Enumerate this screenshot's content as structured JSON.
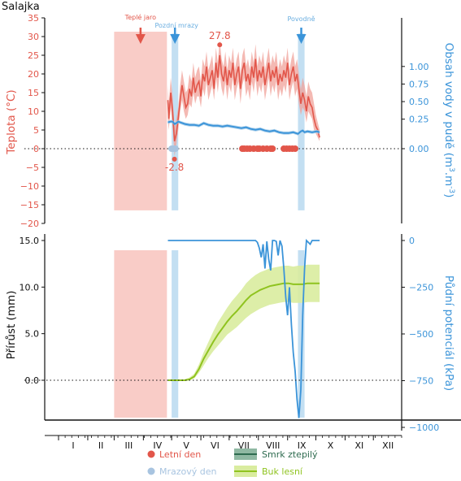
{
  "chart_data": [
    {
      "type": "line",
      "title": "Salajka",
      "ylabel_left": "Teplota (°C)",
      "ylabel_right": "Obsah vody v pudě (m³.m⁻³)",
      "ylabel_right_parts": {
        "pre": "Obsah vody v pudě (m",
        "sup1": "3",
        "mid": ".m",
        "sup2": "-3",
        "post": ")"
      },
      "ylim_left": [
        -20,
        35
      ],
      "ticks_left": [
        35,
        30,
        25,
        20,
        15,
        10,
        5,
        0,
        -5,
        -10,
        -15,
        -20
      ],
      "ticks_right": [
        {
          "label": "1.00",
          "at_temp": 22
        },
        {
          "label": "0.75",
          "at_temp": 17.3
        },
        {
          "label": "0.50",
          "at_temp": 12.6
        },
        {
          "label": "0.25",
          "at_temp": 7.9
        },
        {
          "label": "0.00",
          "at_temp": 0
        }
      ],
      "reference_line": 0,
      "x_domain_doy": [
        1,
        365
      ],
      "shaded_periods": [
        {
          "name": "Teplé jaro",
          "start_doy": 60,
          "end_doy": 116,
          "color": "#f8c3bd"
        },
        {
          "name": "Pozdní mrazy",
          "start_doy": 121,
          "end_doy": 128,
          "color": "#b9d9f0"
        },
        {
          "name": "Povodně",
          "start_doy": 255,
          "end_doy": 262,
          "color": "#b9d9f0"
        }
      ],
      "event_arrows": [
        {
          "label": "Teplé jaro",
          "doy": 88,
          "color": "#e2564a"
        },
        {
          "label": "Pozdní mrazy",
          "doy": 124.5,
          "color": "#3b94d9"
        },
        {
          "label": "Povodně",
          "doy": 258.5,
          "color": "#3b94d9"
        }
      ],
      "annotations": [
        {
          "text": "27.8",
          "doy": 172,
          "value": 27.8,
          "color": "#e2564a"
        },
        {
          "text": "-2.8",
          "doy": 124,
          "value": -2.8,
          "color": "#e2564a"
        }
      ],
      "series": [
        {
          "name": "Teplota",
          "color": "#e2564a",
          "band_color": "#f0a29a",
          "doy": [
            117,
            118,
            120,
            122,
            124,
            126,
            128,
            130,
            132,
            134,
            136,
            138,
            140,
            142,
            144,
            146,
            148,
            150,
            152,
            154,
            156,
            158,
            160,
            162,
            164,
            166,
            168,
            170,
            172,
            174,
            176,
            178,
            180,
            182,
            184,
            186,
            188,
            190,
            192,
            194,
            196,
            198,
            200,
            202,
            204,
            206,
            208,
            210,
            212,
            214,
            216,
            218,
            220,
            222,
            224,
            226,
            228,
            230,
            232,
            234,
            236,
            238,
            240,
            242,
            244,
            246,
            248,
            250,
            252,
            254,
            256,
            258,
            260,
            262,
            264,
            266,
            268,
            270,
            272,
            274,
            276,
            278
          ],
          "mean": [
            13,
            8,
            15,
            10,
            2,
            4,
            8,
            13,
            17,
            14,
            11,
            12,
            16,
            14,
            19,
            15,
            17,
            18,
            14,
            20,
            18,
            22,
            17,
            19,
            21,
            16,
            23,
            19,
            25,
            20,
            18,
            22,
            17,
            21,
            19,
            23,
            17,
            20,
            22,
            16,
            21,
            23,
            18,
            20,
            17,
            22,
            19,
            24,
            18,
            21,
            19,
            22,
            17,
            20,
            23,
            18,
            21,
            19,
            22,
            17,
            20,
            18,
            21,
            19,
            23,
            17,
            20,
            22,
            18,
            20,
            16,
            12,
            15,
            13,
            10,
            14,
            12,
            11,
            8,
            6,
            5,
            3
          ],
          "lower": [
            8,
            5,
            11,
            6,
            -2,
            1,
            5,
            10,
            13,
            10,
            8,
            9,
            12,
            11,
            15,
            12,
            14,
            14,
            11,
            16,
            14,
            18,
            13,
            15,
            17,
            13,
            19,
            15,
            20,
            16,
            14,
            18,
            13,
            17,
            15,
            19,
            13,
            16,
            18,
            12,
            17,
            19,
            14,
            16,
            13,
            18,
            15,
            19,
            14,
            17,
            15,
            18,
            13,
            16,
            19,
            14,
            17,
            15,
            18,
            13,
            16,
            14,
            17,
            15,
            19,
            13,
            16,
            18,
            14,
            16,
            12,
            9,
            11,
            10,
            7,
            10,
            9,
            8,
            5,
            4,
            3,
            2
          ],
          "upper": [
            17,
            12,
            19,
            14,
            6,
            8,
            11,
            17,
            21,
            18,
            15,
            16,
            20,
            18,
            23,
            19,
            21,
            22,
            18,
            24,
            22,
            26,
            21,
            23,
            25,
            20,
            27,
            23,
            29,
            24,
            22,
            26,
            21,
            25,
            23,
            27,
            21,
            24,
            26,
            20,
            25,
            27,
            22,
            24,
            21,
            26,
            23,
            28,
            22,
            25,
            23,
            26,
            21,
            24,
            27,
            22,
            25,
            23,
            26,
            21,
            24,
            22,
            25,
            23,
            27,
            21,
            24,
            26,
            22,
            24,
            20,
            16,
            19,
            17,
            14,
            18,
            16,
            15,
            12,
            9,
            7,
            5
          ]
        },
        {
          "name": "Obsah vody v pudě",
          "color": "#3b94d9",
          "band_color": "#a8cde9",
          "doy": [
            117,
            120,
            122,
            124,
            126,
            128,
            130,
            135,
            140,
            145,
            150,
            155,
            160,
            165,
            170,
            175,
            180,
            185,
            190,
            195,
            200,
            205,
            210,
            215,
            220,
            225,
            230,
            235,
            240,
            245,
            250,
            255,
            258,
            260,
            262,
            265,
            270,
            275,
            278
          ],
          "value": [
            0.32,
            0.33,
            0.33,
            0.3,
            0.31,
            0.33,
            0.32,
            0.3,
            0.29,
            0.29,
            0.28,
            0.31,
            0.29,
            0.28,
            0.28,
            0.27,
            0.28,
            0.27,
            0.26,
            0.25,
            0.26,
            0.24,
            0.23,
            0.24,
            0.22,
            0.21,
            0.22,
            0.2,
            0.19,
            0.19,
            0.2,
            0.18,
            0.21,
            0.22,
            0.2,
            0.21,
            0.2,
            0.21,
            0.2
          ]
        }
      ],
      "markers": [
        {
          "name": "Letní den",
          "color": "#e2564a",
          "y": 0,
          "doy": [
            196,
            198,
            201,
            204,
            208,
            212,
            214,
            218,
            222,
            226,
            228,
            240,
            243,
            246,
            249,
            252
          ]
        },
        {
          "name": "Mrazový den",
          "color": "#a8c4e0",
          "y": 0,
          "doy": [
            121,
            123,
            125
          ]
        }
      ]
    },
    {
      "type": "line",
      "ylabel_left": "Přírůst (mm)",
      "ylabel_right": "Půdní potenciál (kPa)",
      "ylim_left": [
        -5.5,
        16.2
      ],
      "ticks_left": [
        15.0,
        10.0,
        5.0,
        0.0
      ],
      "ticks_left_labels": [
        "15.0",
        "10.0",
        "5.0",
        "0.0"
      ],
      "ticks_right": [
        {
          "label": "0",
          "kpa": 0
        },
        {
          "label": "−250",
          "kpa": -250
        },
        {
          "label": "−500",
          "kpa": -500
        },
        {
          "label": "−750",
          "kpa": -750
        },
        {
          "label": "−1000",
          "kpa": -1000
        }
      ],
      "reference_line": 0,
      "shaded_periods": [
        {
          "start_doy": 60,
          "end_doy": 116,
          "color": "#f8c3bd"
        },
        {
          "start_doy": 121,
          "end_doy": 128,
          "color": "#b9d9f0"
        },
        {
          "start_doy": 255,
          "end_doy": 262,
          "color": "#b9d9f0"
        }
      ],
      "series": [
        {
          "name": "Buk lesní",
          "color": "#8fc31f",
          "band_color": "#d9ec9f",
          "doy": [
            117,
            125,
            130,
            135,
            140,
            145,
            150,
            155,
            160,
            165,
            170,
            175,
            180,
            185,
            190,
            195,
            200,
            205,
            210,
            215,
            220,
            225,
            230,
            235,
            240,
            245,
            250,
            255,
            260,
            265,
            270,
            275,
            278
          ],
          "mean": [
            0,
            0,
            0,
            0,
            0.1,
            0.4,
            1.2,
            2.3,
            3.2,
            4.1,
            4.9,
            5.6,
            6.3,
            6.9,
            7.4,
            8.0,
            8.6,
            9.1,
            9.4,
            9.7,
            9.9,
            10.1,
            10.2,
            10.3,
            10.4,
            10.4,
            10.3,
            10.3,
            10.3,
            10.4,
            10.4,
            10.4,
            10.4
          ],
          "lower": [
            0,
            0,
            0,
            0,
            0,
            0.2,
            0.8,
            1.6,
            2.4,
            3.1,
            3.7,
            4.3,
            4.9,
            5.3,
            5.7,
            6.2,
            6.7,
            7.1,
            7.4,
            7.7,
            7.9,
            8.1,
            8.2,
            8.3,
            8.4,
            8.4,
            8.3,
            8.3,
            8.3,
            8.4,
            8.4,
            8.4,
            8.4
          ],
          "upper": [
            0,
            0,
            0,
            0.1,
            0.3,
            0.7,
            1.7,
            3.0,
            4.1,
            5.2,
            6.2,
            7.0,
            7.8,
            8.5,
            9.1,
            9.7,
            10.4,
            10.9,
            11.3,
            11.6,
            11.8,
            12.0,
            12.1,
            12.2,
            12.3,
            12.3,
            12.2,
            12.3,
            12.3,
            12.4,
            12.4,
            12.4,
            12.4
          ]
        },
        {
          "name": "Půdní potenciál",
          "color": "#3b94d9",
          "doy": [
            117,
            150,
            190,
            210,
            212,
            214,
            216,
            218,
            220,
            222,
            224,
            226,
            228,
            230,
            232,
            234,
            236,
            238,
            240,
            242,
            244,
            246,
            248,
            250,
            252,
            254,
            256,
            258,
            260,
            262,
            264,
            266,
            268,
            270,
            278
          ],
          "kpa": [
            0,
            0,
            0,
            0,
            -10,
            -40,
            -90,
            -20,
            -150,
            -5,
            -100,
            -160,
            0,
            0,
            -5,
            -80,
            0,
            -30,
            -150,
            -300,
            -400,
            -250,
            -450,
            -600,
            -700,
            -850,
            -950,
            -800,
            -400,
            -150,
            0,
            -10,
            -20,
            0,
            0
          ]
        },
        {
          "name": "Smrk ztepilý",
          "color": "#2e6b4f",
          "legend_only": true
        }
      ]
    }
  ],
  "x_axis": {
    "months": [
      "I",
      "II",
      "III",
      "IV",
      "V",
      "VI",
      "VII",
      "VIII",
      "IX",
      "X",
      "XI",
      "XII"
    ],
    "month_start_doy": [
      1,
      32,
      60,
      91,
      121,
      152,
      182,
      213,
      244,
      274,
      305,
      335
    ]
  },
  "legend": [
    {
      "label": "Letní den",
      "type": "point",
      "color": "#e2564a"
    },
    {
      "label": "Mrazový den",
      "type": "point",
      "color": "#a8c4e0"
    },
    {
      "label": "Smrk ztepilý",
      "type": "line",
      "color": "#2e6b4f",
      "band": "#8fb8a2"
    },
    {
      "label": "Buk lesní",
      "type": "line",
      "color": "#8fc31f",
      "band": "#d9ec9f"
    }
  ]
}
